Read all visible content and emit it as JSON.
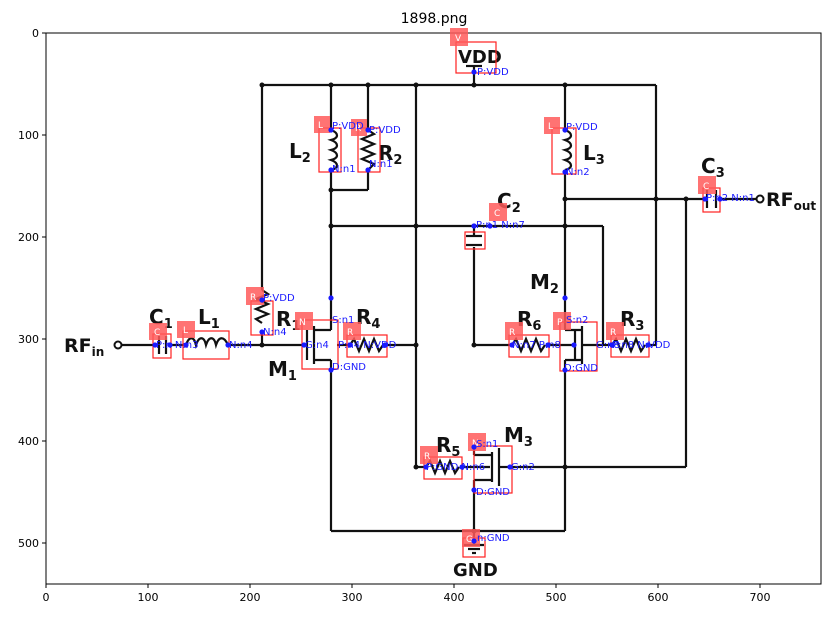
{
  "figure": {
    "title": "1898.png",
    "x_ticks": [
      "0",
      "100",
      "200",
      "300",
      "400",
      "500",
      "600",
      "700"
    ],
    "y_ticks": [
      "0",
      "100",
      "200",
      "300",
      "400",
      "500"
    ]
  },
  "circuit": {
    "labels": {
      "vdd": "VDD",
      "gnd": "GND",
      "rf_in": "RF",
      "rf_in_sub": "in",
      "rf_out": "RF",
      "rf_out_sub": "out",
      "L1": "L",
      "L1_sub": "1",
      "L2": "L",
      "L2_sub": "2",
      "L3": "L",
      "L3_sub": "3",
      "R1": "R",
      "R1_sub": "1",
      "R2": "R",
      "R2_sub": "2",
      "R3": "R",
      "R3_sub": "3",
      "R4": "R",
      "R4_sub": "4",
      "R5": "R",
      "R5_sub": "5",
      "R6": "R",
      "R6_sub": "6",
      "C1": "C",
      "C1_sub": "1",
      "C2": "C",
      "C2_sub": "2",
      "C3": "C",
      "C3_sub": "3",
      "M1": "M",
      "M1_sub": "1",
      "M2": "M",
      "M2_sub": "2",
      "M3": "M",
      "M3_sub": "3"
    },
    "tags": {
      "V": "V",
      "L": "L",
      "R": "R",
      "C": "C",
      "N": "N",
      "P": "P",
      "G": "G"
    },
    "annotations": {
      "vdd_node": "P:VDD",
      "L2_p": "P:VDD",
      "R2_p": "P:VDD",
      "L2_n": "N:n1",
      "R2_n": "N:n1",
      "L3_p": "P:VDD",
      "L3_n": "N:n2",
      "C3_pn": "P:n2 N:n1",
      "C2_pn": "P:n1 N:n7",
      "R1_p": "P:VDD",
      "R1_n": "N:n4",
      "C1_pn": "P:n N:n3",
      "L1_n": "N:n4",
      "M1_s": "S:n1",
      "M1_g": "G:n4",
      "R4_pn": "P:n4 N:VDD",
      "M1_d": "D:GND",
      "M2_s": "S:n2",
      "R6_pn": "N:n7 P:n8",
      "M2_g": "G:n8",
      "R3_pn": "P:n8 N:VDD",
      "M2_d": "D:GND",
      "M3_s": "S:n1",
      "R5_pn": "P:GND N:n6",
      "M3_g": "G:n2",
      "M3_d": "D:GND",
      "gnd_node": "n:GND"
    }
  }
}
